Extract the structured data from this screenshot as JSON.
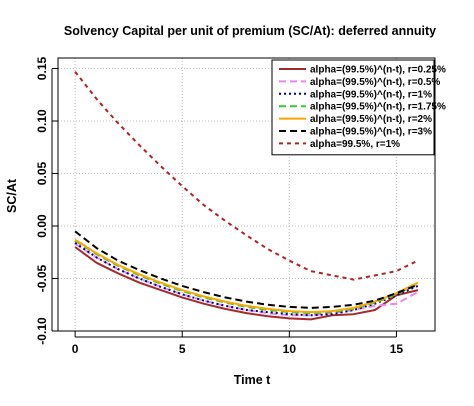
{
  "chart_data": {
    "type": "line",
    "title": "Solvency Capital per unit of premium (SC/At): deferred annuity",
    "xlabel": "Time t",
    "ylabel": "SC/At",
    "xlim": [
      -0.8,
      16.8
    ],
    "ylim": [
      -0.1,
      0.16
    ],
    "xticks": [
      "0",
      "5",
      "10",
      "15"
    ],
    "yticks": [
      "-0.10",
      "-0.05",
      "0.00",
      "0.05",
      "0.10",
      "0.15"
    ],
    "grid": true,
    "legend_position": "top-right",
    "x": [
      0,
      1,
      2,
      3,
      4,
      5,
      6,
      7,
      8,
      9,
      10,
      11,
      12,
      13,
      14,
      15,
      16
    ],
    "series": [
      {
        "name": "alpha=(99.5%)^(n-t), r=0.25%",
        "color": "#a52a2a",
        "dash": "solid",
        "values": [
          -0.02,
          -0.035,
          -0.045,
          -0.054,
          -0.061,
          -0.068,
          -0.074,
          -0.079,
          -0.083,
          -0.086,
          -0.088,
          -0.089,
          -0.085,
          -0.084,
          -0.08,
          -0.066,
          -0.061
        ]
      },
      {
        "name": "alpha=(99.5%)^(n-t), r=0.5%",
        "color": "#ee82ee",
        "dash": "longdash",
        "values": [
          -0.017,
          -0.03,
          -0.041,
          -0.05,
          -0.058,
          -0.065,
          -0.071,
          -0.076,
          -0.08,
          -0.083,
          -0.085,
          -0.085,
          -0.083,
          -0.08,
          -0.076,
          -0.074,
          -0.063
        ]
      },
      {
        "name": "alpha=(99.5%)^(n-t), r=1%",
        "color": "#00008b",
        "dash": "dotted",
        "values": [
          -0.016,
          -0.03,
          -0.041,
          -0.05,
          -0.058,
          -0.065,
          -0.071,
          -0.076,
          -0.08,
          -0.082,
          -0.084,
          -0.085,
          -0.084,
          -0.08,
          -0.074,
          -0.066,
          -0.057
        ]
      },
      {
        "name": "alpha=(99.5%)^(n-t), r=1.75%",
        "color": "#32cd32",
        "dash": "longdash",
        "values": [
          -0.014,
          -0.027,
          -0.038,
          -0.047,
          -0.055,
          -0.062,
          -0.068,
          -0.073,
          -0.077,
          -0.08,
          -0.082,
          -0.083,
          -0.082,
          -0.079,
          -0.073,
          -0.065,
          -0.055
        ]
      },
      {
        "name": "alpha=(99.5%)^(n-t), r=2%",
        "color": "#ffa500",
        "dash": "solid",
        "values": [
          -0.013,
          -0.026,
          -0.037,
          -0.046,
          -0.054,
          -0.061,
          -0.067,
          -0.072,
          -0.076,
          -0.079,
          -0.081,
          -0.082,
          -0.081,
          -0.078,
          -0.072,
          -0.064,
          -0.054
        ]
      },
      {
        "name": "alpha=(99.5%)^(n-t), r=3%",
        "color": "#000000",
        "dash": "longdash",
        "values": [
          -0.005,
          -0.021,
          -0.033,
          -0.042,
          -0.05,
          -0.057,
          -0.063,
          -0.068,
          -0.072,
          -0.075,
          -0.077,
          -0.078,
          -0.077,
          -0.075,
          -0.071,
          -0.064,
          -0.056
        ]
      },
      {
        "name": "alpha=99.5%, r=1%",
        "color": "#b22222",
        "dash": "shortdash",
        "values": [
          0.147,
          0.121,
          0.098,
          0.077,
          0.057,
          0.038,
          0.02,
          0.005,
          -0.009,
          -0.022,
          -0.033,
          -0.043,
          -0.047,
          -0.051,
          -0.047,
          -0.043,
          -0.033
        ]
      }
    ]
  }
}
